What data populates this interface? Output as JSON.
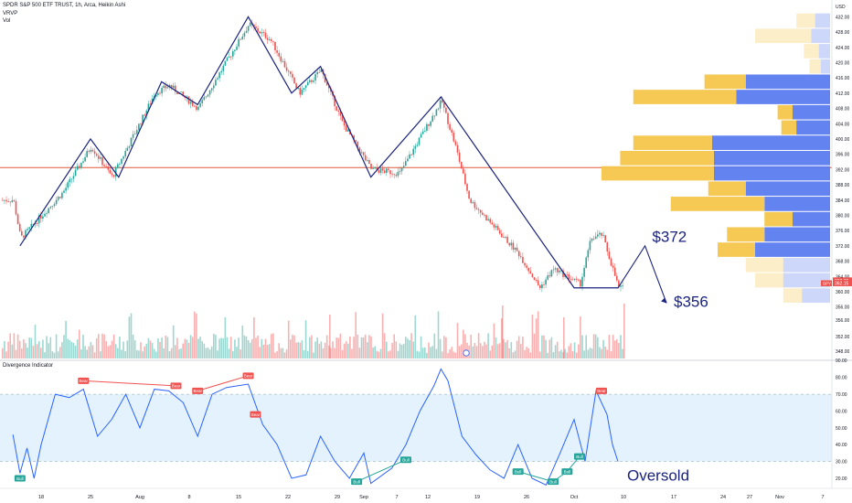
{
  "header": {
    "symbol_line": "SPDR S&P 500 ETF TRUST, 1h, Arca, Heikin Ashi",
    "indicator_1": "VRVP",
    "indicator_2": "Vol"
  },
  "indicator": {
    "title": "Divergence Indicator"
  },
  "colors": {
    "up": "#26a69a",
    "down": "#ef5350",
    "wave_line": "#1a237e",
    "osc_line": "#2962ff",
    "band_fill": "#e3f2fd",
    "vp_up": "#f5c64b",
    "vp_down": "#5b7cf0",
    "level_line": "#e05a3a",
    "bull_label": "#26a69a",
    "bear_label": "#ef5350",
    "annotation": "#1a237e"
  },
  "chart_data": [
    {
      "type": "candlestick",
      "title": "SPDR S&P 500 ETF TRUST, 1h, Arca, Heikin Ashi",
      "x_tick_labels": [
        "18",
        "25",
        "Aug",
        "8",
        "15",
        "22",
        "29",
        "Sep",
        "7",
        "12",
        "19",
        "26",
        "Oct",
        "10",
        "17",
        "24",
        "27",
        "Nov",
        "7"
      ],
      "y_axis_label": "USD",
      "y_ticks": [
        432,
        428,
        424,
        420,
        416,
        412,
        408,
        404,
        400,
        396,
        392,
        388,
        384,
        380,
        376,
        372,
        368,
        364,
        360,
        356
      ],
      "ylim": [
        354,
        434
      ],
      "price_path": [
        {
          "date": "Jul 14",
          "price": 384
        },
        {
          "date": "Jul 15",
          "price": 374
        },
        {
          "date": "Jul 21",
          "price": 386
        },
        {
          "date": "Jul 25",
          "price": 398
        },
        {
          "date": "Jul 28",
          "price": 390
        },
        {
          "date": "Aug 3",
          "price": 412
        },
        {
          "date": "Aug 5",
          "price": 414
        },
        {
          "date": "Aug 9",
          "price": 408
        },
        {
          "date": "Aug 16",
          "price": 430
        },
        {
          "date": "Aug 19",
          "price": 426
        },
        {
          "date": "Aug 23",
          "price": 412
        },
        {
          "date": "Aug 26",
          "price": 418
        },
        {
          "date": "Aug 29",
          "price": 404
        },
        {
          "date": "Sep 2",
          "price": 392
        },
        {
          "date": "Sep 6",
          "price": 391
        },
        {
          "date": "Sep 12",
          "price": 410
        },
        {
          "date": "Sep 14",
          "price": 398
        },
        {
          "date": "Sep 16",
          "price": 384
        },
        {
          "date": "Sep 23",
          "price": 370
        },
        {
          "date": "Sep 26",
          "price": 361
        },
        {
          "date": "Sep 28",
          "price": 366
        },
        {
          "date": "Oct 2",
          "price": 362
        },
        {
          "date": "Oct 4",
          "price": 374
        },
        {
          "date": "Oct 6",
          "price": 375
        },
        {
          "date": "Oct 9",
          "price": 361
        }
      ],
      "wave_line": [
        {
          "date": "Jul 15",
          "price": 372
        },
        {
          "date": "Jul 25",
          "price": 400
        },
        {
          "date": "Jul 29",
          "price": 390
        },
        {
          "date": "Aug 4",
          "price": 415
        },
        {
          "date": "Aug 9",
          "price": 409
        },
        {
          "date": "Aug 16",
          "price": 432
        },
        {
          "date": "Aug 22",
          "price": 412
        },
        {
          "date": "Aug 26",
          "price": 419
        },
        {
          "date": "Sep 2",
          "price": 390
        },
        {
          "date": "Sep 12",
          "price": 411
        },
        {
          "date": "Oct 1",
          "price": 361
        },
        {
          "date": "Oct 9",
          "price": 361
        }
      ],
      "projection": [
        {
          "date": "Oct 9",
          "price": 361
        },
        {
          "date": "Oct 13",
          "price": 372
        },
        {
          "date": "Oct 16",
          "price": 357
        }
      ],
      "horizontal_level": 392.5,
      "last_price_tags": [
        "362.79",
        "362.15"
      ],
      "annotations": [
        {
          "text": "$372",
          "date": "Oct 14",
          "price": 373
        },
        {
          "text": "$356",
          "date": "Oct 17",
          "price": 356
        }
      ],
      "volume_profile": [
        {
          "price": 431,
          "up": 0.1,
          "down": 0.08
        },
        {
          "price": 427,
          "up": 0.3,
          "down": 0.1
        },
        {
          "price": 423,
          "up": 0.08,
          "down": 0.06
        },
        {
          "price": 419,
          "up": 0.06,
          "down": 0.05
        },
        {
          "price": 415,
          "up": 0.22,
          "down": 0.45
        },
        {
          "price": 411,
          "up": 0.55,
          "down": 0.5
        },
        {
          "price": 407,
          "up": 0.08,
          "down": 0.2
        },
        {
          "price": 403,
          "up": 0.08,
          "down": 0.18
        },
        {
          "price": 399,
          "up": 0.42,
          "down": 0.63
        },
        {
          "price": 395,
          "up": 0.5,
          "down": 0.62
        },
        {
          "price": 391,
          "up": 0.6,
          "down": 0.62
        },
        {
          "price": 387,
          "up": 0.2,
          "down": 0.45
        },
        {
          "price": 383,
          "up": 0.5,
          "down": 0.35
        },
        {
          "price": 379,
          "up": 0.15,
          "down": 0.2
        },
        {
          "price": 375,
          "up": 0.2,
          "down": 0.35
        },
        {
          "price": 371,
          "up": 0.2,
          "down": 0.4
        },
        {
          "price": 367,
          "up": 0.2,
          "down": 0.25
        },
        {
          "price": 363,
          "up": 0.15,
          "down": 0.25
        },
        {
          "price": 359,
          "up": 0.1,
          "down": 0.15
        }
      ]
    },
    {
      "type": "line",
      "title": "Divergence Indicator",
      "y_ticks": [
        80,
        70,
        60,
        50,
        40,
        30,
        20
      ],
      "ylim": [
        14,
        88
      ],
      "overbought": 70,
      "oversold": 30,
      "series": [
        {
          "values": [
            {
              "date": "Jul 14",
              "value": 46
            },
            {
              "date": "Jul 15",
              "value": 23
            },
            {
              "date": "Jul 16",
              "value": 38
            },
            {
              "date": "Jul 17",
              "value": 20
            },
            {
              "date": "Jul 18",
              "value": 40
            },
            {
              "date": "Jul 20",
              "value": 70
            },
            {
              "date": "Jul 22",
              "value": 68
            },
            {
              "date": "Jul 24",
              "value": 73
            },
            {
              "date": "Jul 26",
              "value": 45
            },
            {
              "date": "Jul 28",
              "value": 55
            },
            {
              "date": "Jul 30",
              "value": 70
            },
            {
              "date": "Aug 1",
              "value": 50
            },
            {
              "date": "Aug 3",
              "value": 73
            },
            {
              "date": "Aug 5",
              "value": 72
            },
            {
              "date": "Aug 7",
              "value": 65
            },
            {
              "date": "Aug 9",
              "value": 45
            },
            {
              "date": "Aug 11",
              "value": 70
            },
            {
              "date": "Aug 13",
              "value": 74
            },
            {
              "date": "Aug 16",
              "value": 76
            },
            {
              "date": "Aug 18",
              "value": 52
            },
            {
              "date": "Aug 20",
              "value": 40
            },
            {
              "date": "Aug 22",
              "value": 20
            },
            {
              "date": "Aug 24",
              "value": 22
            },
            {
              "date": "Aug 26",
              "value": 45
            },
            {
              "date": "Aug 28",
              "value": 30
            },
            {
              "date": "Aug 30",
              "value": 20
            },
            {
              "date": "Sep 1",
              "value": 35
            },
            {
              "date": "Sep 2",
              "value": 17
            },
            {
              "date": "Sep 5",
              "value": 26
            },
            {
              "date": "Sep 7",
              "value": 40
            },
            {
              "date": "Sep 9",
              "value": 60
            },
            {
              "date": "Sep 11",
              "value": 75
            },
            {
              "date": "Sep 12",
              "value": 85
            },
            {
              "date": "Sep 13",
              "value": 78
            },
            {
              "date": "Sep 15",
              "value": 45
            },
            {
              "date": "Sep 17",
              "value": 34
            },
            {
              "date": "Sep 19",
              "value": 25
            },
            {
              "date": "Sep 21",
              "value": 20
            },
            {
              "date": "Sep 23",
              "value": 40
            },
            {
              "date": "Sep 25",
              "value": 20
            },
            {
              "date": "Sep 27",
              "value": 16
            },
            {
              "date": "Sep 29",
              "value": 35
            },
            {
              "date": "Oct 1",
              "value": 55
            },
            {
              "date": "Oct 3",
              "value": 30
            },
            {
              "date": "Oct 5",
              "value": 72
            },
            {
              "date": "Oct 7",
              "value": 58
            },
            {
              "date": "Oct 8",
              "value": 40
            },
            {
              "date": "Oct 9",
              "value": 30
            }
          ]
        }
      ],
      "signals": [
        {
          "label": "Bull",
          "date": "Jul 15",
          "value": 20
        },
        {
          "label": "Bear",
          "date": "Jul 24",
          "value": 78
        },
        {
          "label": "Bear",
          "date": "Aug 6",
          "value": 75
        },
        {
          "label": "Bear",
          "date": "Aug 9",
          "value": 72
        },
        {
          "label": "Bear",
          "date": "Aug 16",
          "value": 81
        },
        {
          "label": "Bear",
          "date": "Aug 17",
          "value": 58
        },
        {
          "label": "Bull",
          "date": "Aug 31",
          "value": 18
        },
        {
          "label": "Bull",
          "date": "Sep 7",
          "value": 31
        },
        {
          "label": "Bull",
          "date": "Sep 23",
          "value": 24
        },
        {
          "label": "Bull",
          "date": "Sep 28",
          "value": 18
        },
        {
          "label": "Bull",
          "date": "Sep 30",
          "value": 24
        },
        {
          "label": "Bull",
          "date": "Oct 2",
          "value": 33
        },
        {
          "label": "Bear",
          "date": "Oct 6",
          "value": 72
        }
      ],
      "annotations": [
        {
          "text": "Oversold",
          "date": "Oct 13",
          "value": 22
        }
      ]
    }
  ]
}
